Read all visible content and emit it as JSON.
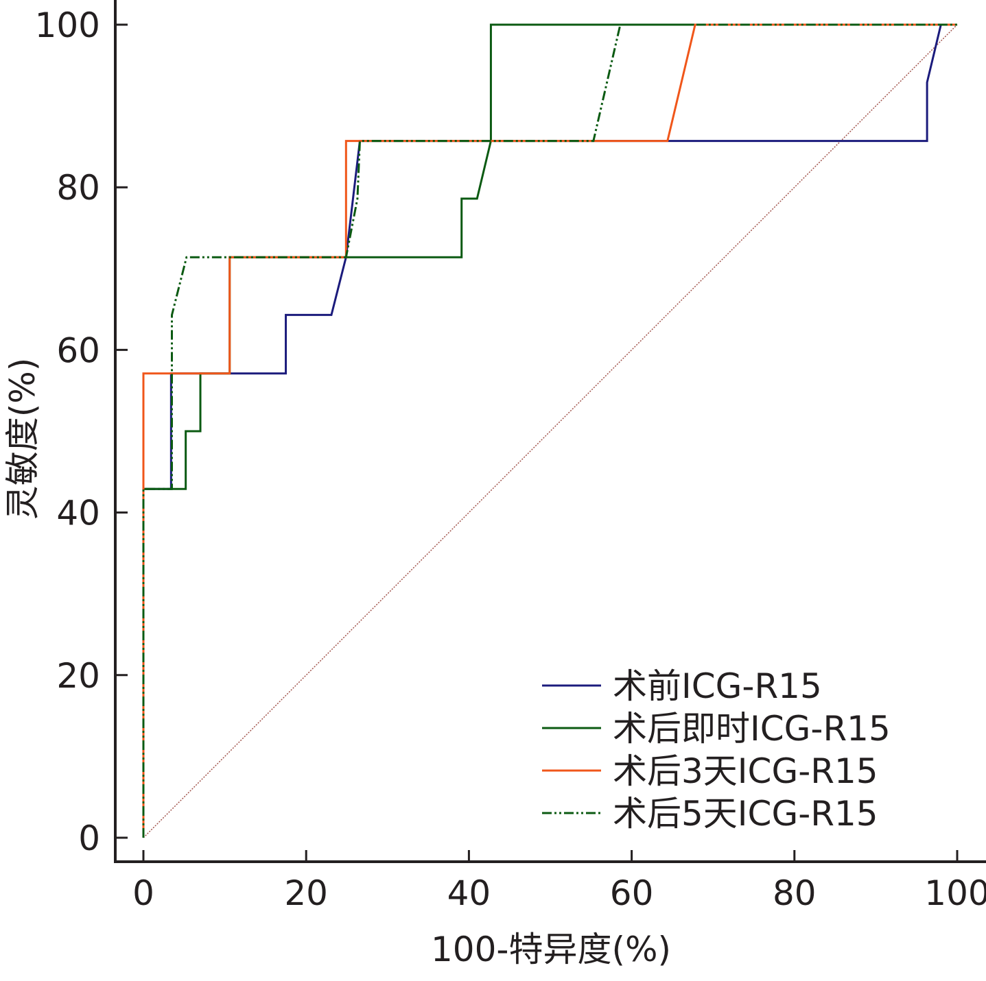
{
  "chart_data": {
    "type": "line",
    "title": "",
    "xlabel": "100-特异度(%)",
    "ylabel": "灵敏度(%)",
    "xlim": [
      0,
      100
    ],
    "ylim": [
      0,
      100
    ],
    "xticks": [
      "0",
      "20",
      "40",
      "60",
      "80",
      "100"
    ],
    "yticks": [
      "0",
      "20",
      "40",
      "60",
      "80",
      "100"
    ],
    "grid": false,
    "legend_position": "bottom-right",
    "series": [
      {
        "name": "术前ICG-R15",
        "color": "#1b1b7c",
        "style": "solid",
        "x": [
          0,
          0,
          3.4,
          3.4,
          17.5,
          17.5,
          23.1,
          24.9,
          26.6,
          96.3,
          96.3,
          98.0,
          100
        ],
        "y": [
          0,
          42.9,
          42.9,
          57.1,
          57.1,
          64.3,
          64.3,
          71.4,
          85.7,
          85.7,
          92.9,
          100,
          100
        ]
      },
      {
        "name": "术后即时ICG-R15",
        "color": "#0b5a12",
        "style": "solid",
        "x": [
          0,
          0,
          5.2,
          5.2,
          7.0,
          7.0,
          10.6,
          10.6,
          39.1,
          39.1,
          41.0,
          42.7,
          42.7,
          100
        ],
        "y": [
          0,
          42.9,
          42.9,
          50,
          50,
          57.1,
          57.1,
          71.4,
          71.4,
          78.6,
          78.6,
          85.7,
          100,
          100
        ]
      },
      {
        "name": "术后3天ICG-R15",
        "color": "#f0561a",
        "style": "solid",
        "x": [
          0,
          0,
          0,
          10.6,
          10.6,
          24.9,
          24.9,
          64.4,
          67.8,
          100
        ],
        "y": [
          0,
          42.9,
          57.1,
          57.1,
          71.4,
          71.4,
          85.7,
          85.7,
          100,
          100
        ]
      },
      {
        "name": "术后5天ICG-R15",
        "color": "#0b5a12",
        "style": "dashdot",
        "x": [
          0,
          0,
          3.5,
          3.5,
          5.3,
          24.9,
          26.3,
          26.6,
          55.3,
          58.6,
          100
        ],
        "y": [
          0,
          42.9,
          42.9,
          64.3,
          71.4,
          71.4,
          78.6,
          85.7,
          85.7,
          100,
          100
        ]
      }
    ],
    "reference_line": {
      "x": [
        0,
        100
      ],
      "y": [
        0,
        100
      ],
      "color": "#a0524a",
      "style": "dotted"
    }
  }
}
